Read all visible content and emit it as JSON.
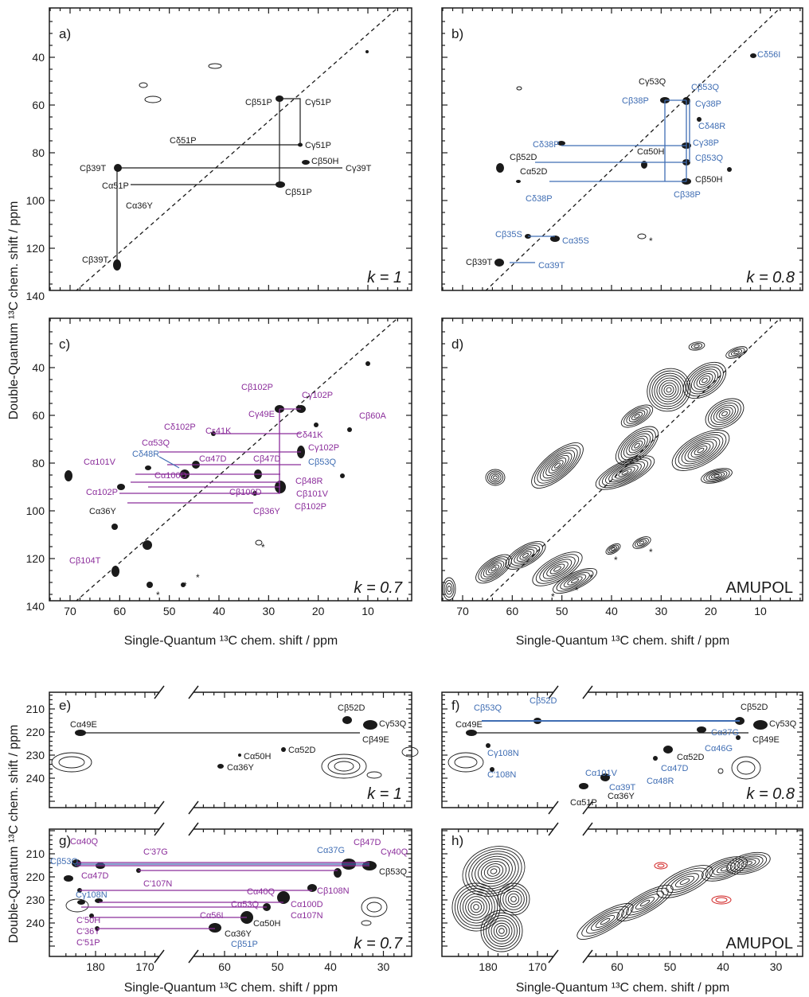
{
  "axes": {
    "y_label_top": "Double-Quantum ¹³C chem. shift / ppm",
    "y_label_bottom": "Double-Quantum ¹³C chem. shift / ppm",
    "x_label": "Single-Quantum ¹³C chem. shift / ppm",
    "top_x_ticks": [
      "70",
      "60",
      "50",
      "40",
      "30",
      "20",
      "10"
    ],
    "top_y_ticks": [
      "40",
      "60",
      "80",
      "100",
      "120",
      "140"
    ],
    "bottom_left_x_ticks": [
      "180",
      "170"
    ],
    "bottom_right_x_ticks": [
      "60",
      "50",
      "40",
      "30"
    ],
    "bottom_y_ticks": [
      "210",
      "220",
      "230",
      "240"
    ]
  },
  "panels": {
    "a": {
      "tag": "a)",
      "k": "k = 1"
    },
    "b": {
      "tag": "b)",
      "k": "k = 0.8"
    },
    "c": {
      "tag": "c)",
      "k": "k = 0.7"
    },
    "d": {
      "tag": "d)",
      "k": "AMUPOL"
    },
    "e": {
      "tag": "e)",
      "k": "k = 1"
    },
    "f": {
      "tag": "f)",
      "k": "k = 0.8"
    },
    "g": {
      "tag": "g)",
      "k": "k = 0.7"
    },
    "h": {
      "tag": "h)",
      "k": "AMUPOL"
    }
  },
  "colors": {
    "black": "#1a1a1a",
    "blue": "#3f6db3",
    "purple": "#8b2d9b",
    "red": "#d02020"
  },
  "labels": {
    "a": [
      "Cβ51P",
      "Cγ51P",
      "Cδ51P",
      "Cγ51P",
      "Cβ50H",
      "Cβ39T",
      "Cγ39T",
      "Cα51P",
      "Cβ51P",
      "Cα36Y",
      "Cβ39T"
    ],
    "b": [
      "Cδ56I",
      "Cγ53Q",
      "Cβ53Q",
      "Cβ38P",
      "Cγ38P",
      "Cδ48R",
      "Cδ38P",
      "Cγ38P",
      "Cα50H",
      "Cβ52D",
      "Cα52D",
      "Cβ53Q",
      "Cβ50H",
      "Cδ38P",
      "Cβ38P",
      "Cβ35S",
      "Cα35S",
      "Cβ39T",
      "Cα39T"
    ],
    "c": [
      "Cβ102P",
      "Cγ102P",
      "Cγ49E",
      "Cβ60A",
      "Cδ102P",
      "Cε41K",
      "Cδ41K",
      "Cα53Q",
      "Cγ102P",
      "Cδ48R",
      "Cα47D",
      "Cβ47D",
      "Cβ53Q",
      "Cα101V",
      "Cα100D",
      "Cβ48R",
      "Cα102P",
      "Cβ100D",
      "Cβ101V",
      "Cβ102P",
      "Cα36Y",
      "Cβ36Y",
      "Cβ104T"
    ],
    "e": [
      "Cα49E",
      "Cβ52D",
      "Cγ53Q",
      "Cβ49E",
      "Cα52D",
      "Cα50H",
      "Cα36Y"
    ],
    "f": [
      "Cβ53Q",
      "Cβ52D",
      "Cβ52D",
      "Cγ53Q",
      "Cα49E",
      "Cβ49E",
      "Cα37G",
      "Cγ108N",
      "Cα46G",
      "Cα52D",
      "C'108N",
      "Cα47D",
      "Cα48R",
      "Cα101V",
      "Cα39T",
      "Cα51P",
      "Cα36Y"
    ],
    "g": [
      "Cα40Q",
      "Cβ53Q",
      "C'37G",
      "Cα47D",
      "Cα37G",
      "Cβ47D",
      "Cγ40Q",
      "Cβ53Q",
      "Cγ108N",
      "Cβ108N",
      "C'107N",
      "Cα40Q",
      "Cα53Q",
      "Cα100D",
      "C'50H",
      "Cα56I",
      "Cα107N",
      "Cα50H",
      "C'36Y",
      "Cα36Y",
      "C'51P",
      "Cβ51P"
    ]
  }
}
